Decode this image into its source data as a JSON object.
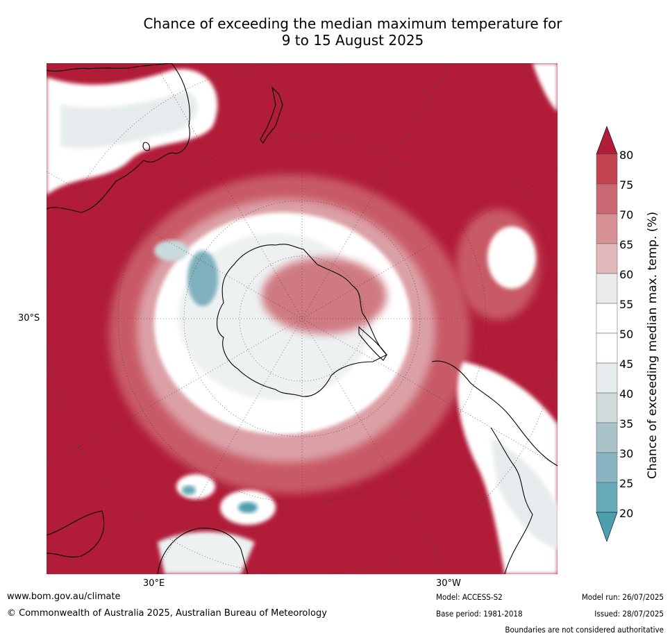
{
  "title": {
    "line1": "Chance of exceeding the median maximum temperature for",
    "line2": "9 to 15 August 2025"
  },
  "map": {
    "lat_label": "30°S",
    "lon_labels": [
      "30°E",
      "30°W"
    ],
    "palette": {
      "strong_high": "#b11c38",
      "high": "#c85a66",
      "mid_high": "#dba0a6",
      "neutral": "#ffffff",
      "mid_low": "#e6eced",
      "low": "#9fbcc4",
      "strong_low": "#4d9eae"
    }
  },
  "colorbar": {
    "ticks": [
      "80",
      "75",
      "70",
      "65",
      "60",
      "55",
      "50",
      "45",
      "40",
      "35",
      "30",
      "25",
      "20"
    ],
    "title": "Chance of exceeding median max. temp. (%)",
    "colors": [
      "#b11c38",
      "#c0434f",
      "#c96872",
      "#d69096",
      "#e2b8bb",
      "#ebe9e9",
      "#ffffff",
      "#ffffff",
      "#e6ecee",
      "#d1d9db",
      "#a9c3c9",
      "#88b5c1",
      "#66a9b7",
      "#4d9eae"
    ]
  },
  "footer": {
    "url": "www.bom.gov.au/climate",
    "copyright": "© Commonwealth of Australia 2025, Australian Bureau of Meteorology",
    "model": "Model: ACCESS-S2",
    "base_period": "Base period: 1981-2018",
    "model_run": "Model run: 26/07/2025",
    "issued": "Issued: 28/07/2025",
    "disclaimer": "Boundaries are not considered authoritative"
  }
}
